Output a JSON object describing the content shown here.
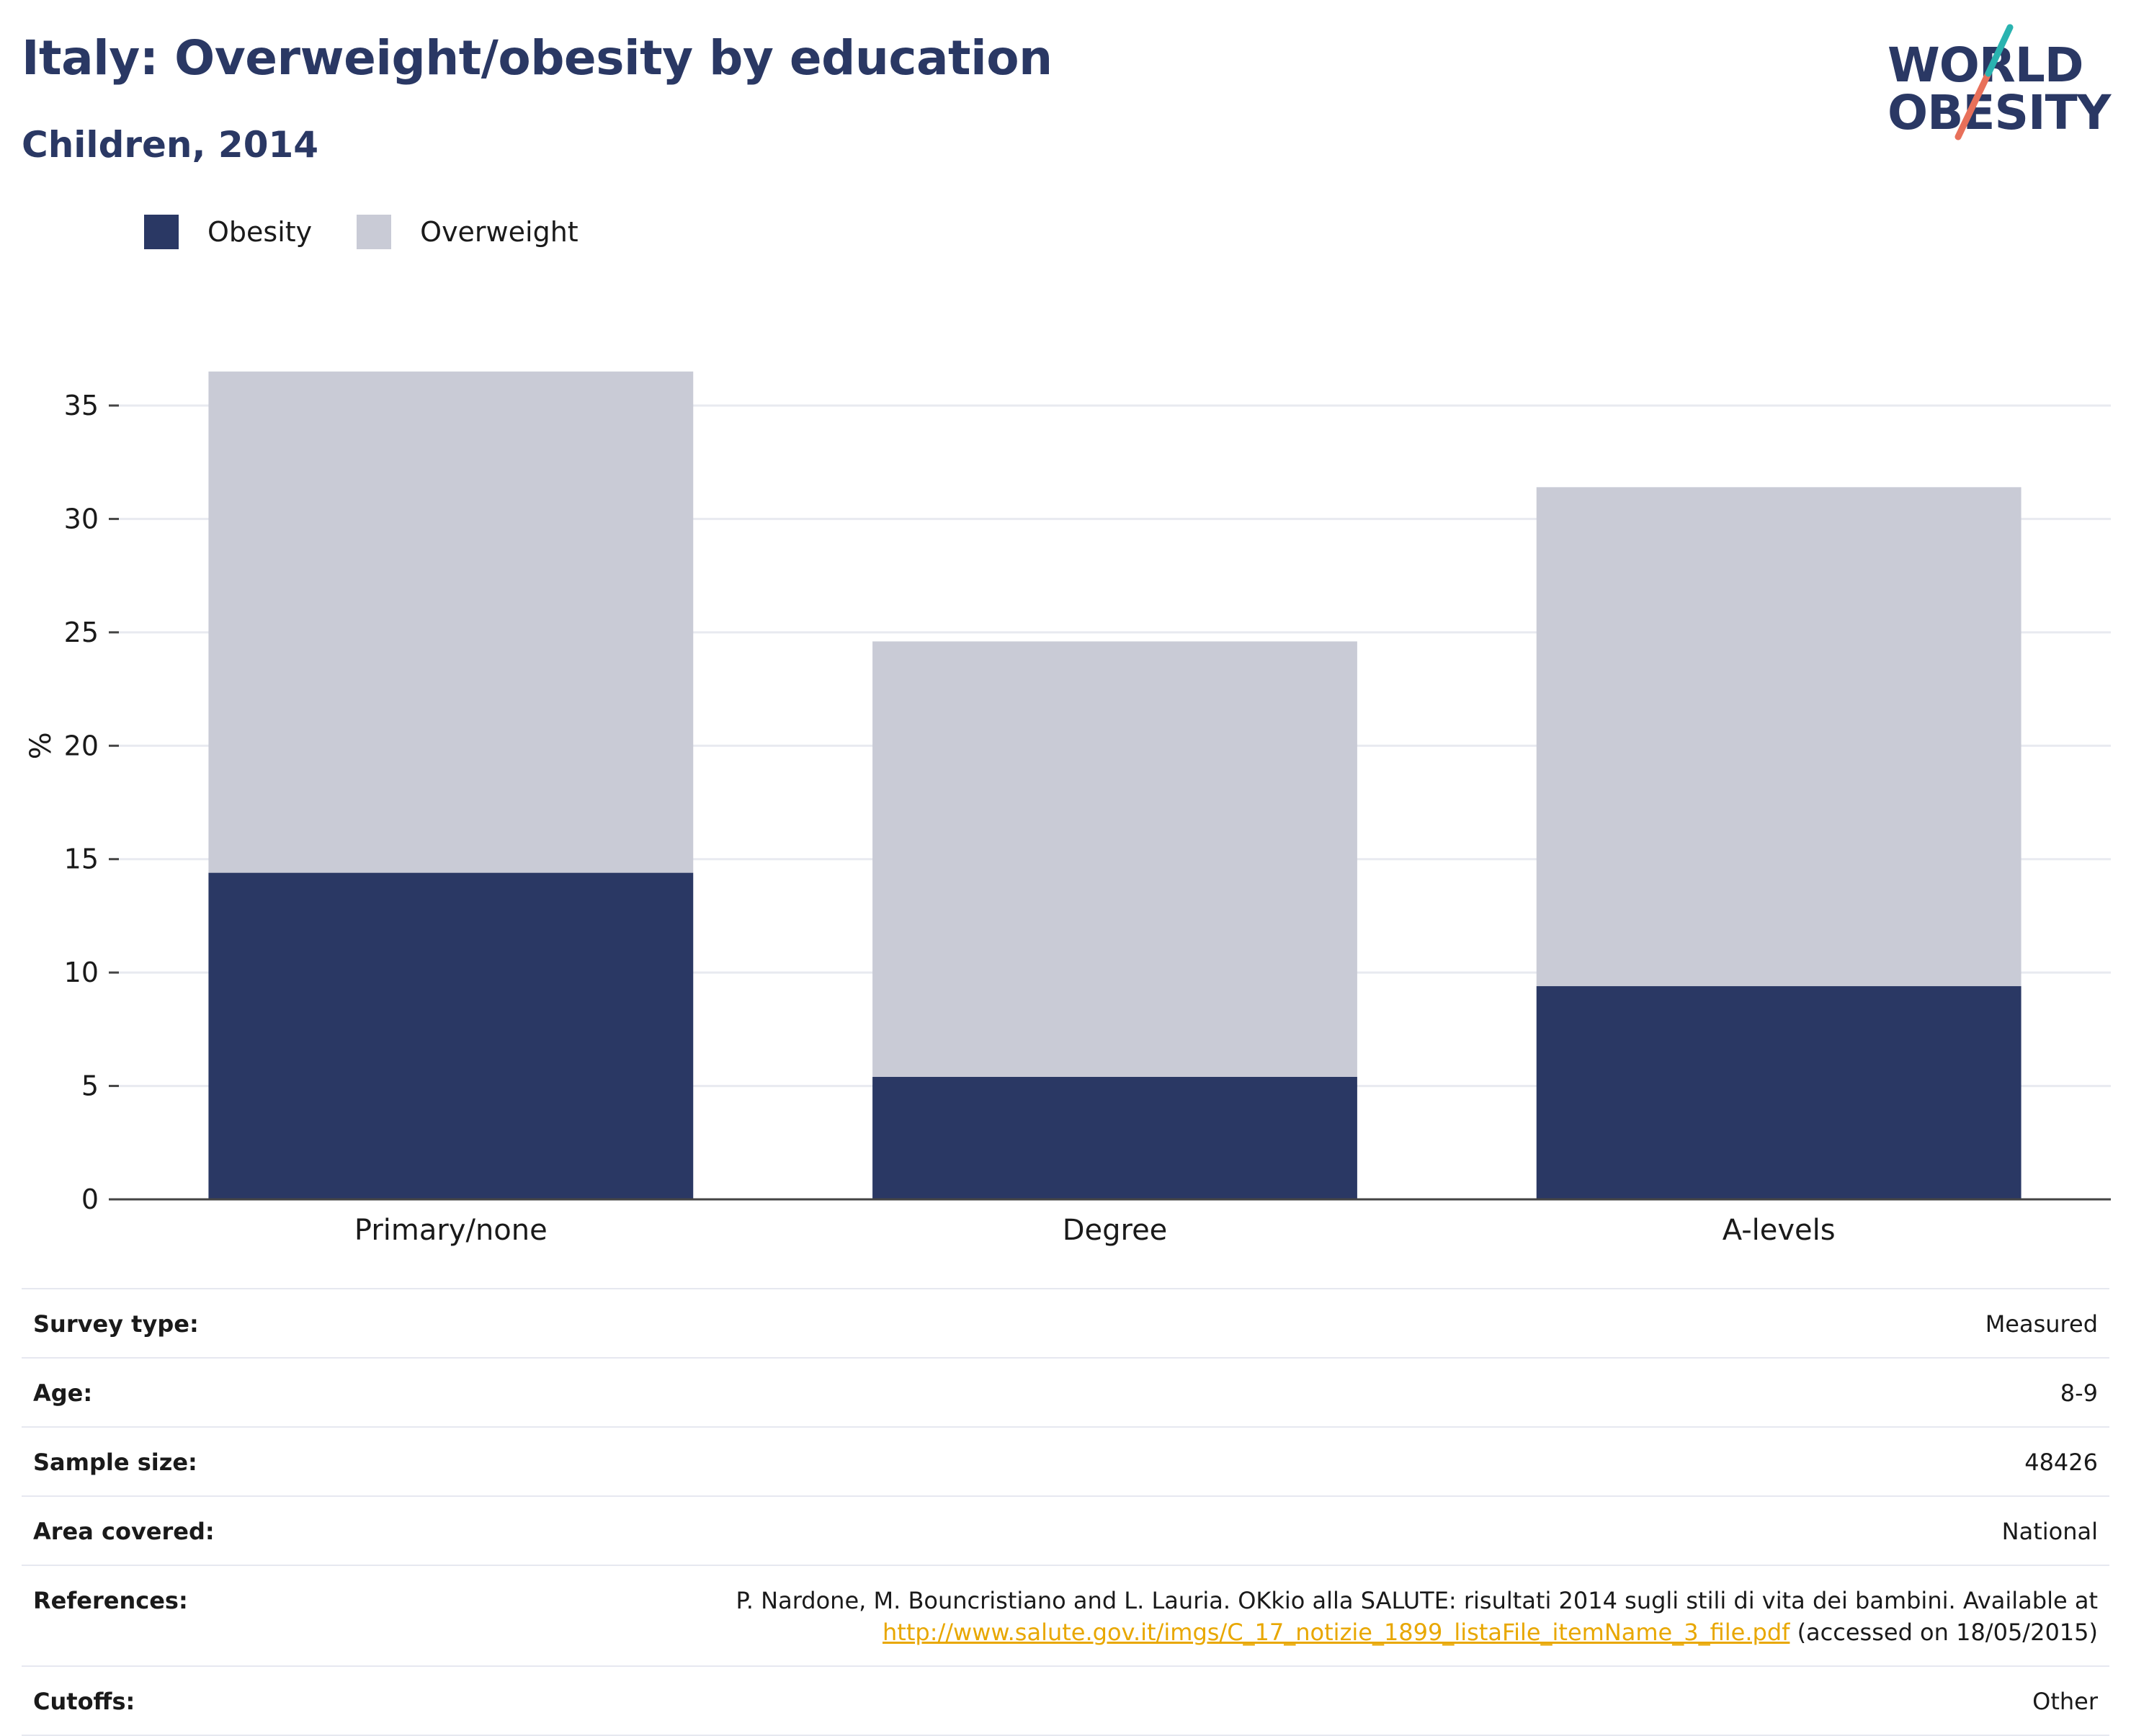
{
  "header": {
    "title": "Italy: Overweight/obesity by education",
    "subtitle": "Children, 2014"
  },
  "logo": {
    "line1": "WORLD",
    "line2": "OBESITY"
  },
  "colors": {
    "obesity": "#2a3864",
    "overweight": "#c9cbd6",
    "link": "#e8a700",
    "logo_teal": "#2ab3b0",
    "logo_coral": "#e8705a"
  },
  "chart_data": {
    "type": "bar",
    "stacked": true,
    "categories": [
      "Primary/none",
      "Degree",
      "A-levels"
    ],
    "series": [
      {
        "name": "Obesity",
        "values": [
          14.4,
          5.4,
          9.4
        ]
      },
      {
        "name": "Overweight",
        "values": [
          22.1,
          19.2,
          22.0
        ]
      }
    ],
    "ylabel": "%",
    "xlabel": "",
    "ylim": [
      0,
      37
    ],
    "yticks": [
      0,
      5,
      10,
      15,
      20,
      25,
      30,
      35
    ],
    "grid": true,
    "legend": "top-left"
  },
  "info": {
    "rows": [
      {
        "key": "Survey type:",
        "value": "Measured"
      },
      {
        "key": "Age:",
        "value": "8-9"
      },
      {
        "key": "Sample size:",
        "value": "48426"
      },
      {
        "key": "Area covered:",
        "value": "National"
      },
      {
        "key": "Cutoffs:",
        "value": "Other"
      }
    ],
    "references": {
      "key": "References:",
      "text": "P. Nardone, M. Bouncristiano and L. Lauria. OKkio alla SALUTE: risultati 2014 sugli stili di vita dei bambini. Available at",
      "link": "http://www.salute.gov.it/imgs/C_17_notizie_1899_listaFile_itemName_3_file.pdf",
      "suffix": "(accessed on 18/05/2015)"
    }
  }
}
